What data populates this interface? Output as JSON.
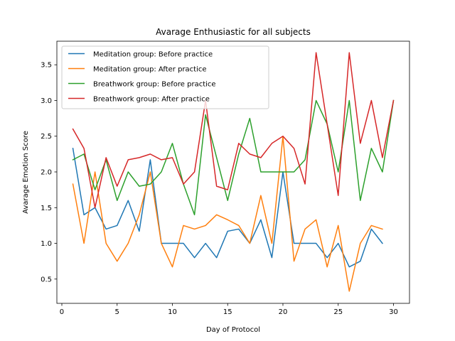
{
  "chart_data": {
    "type": "line",
    "title": "Avarage Enthusiastic for all subjects",
    "xlabel": "Day of Protocol",
    "ylabel": "Avarage Emotion Score",
    "xlim": [
      -0.45,
      31.45
    ],
    "ylim": [
      0.16,
      3.83
    ],
    "xticks": [
      0,
      5,
      10,
      15,
      20,
      25,
      30
    ],
    "yticks": [
      0.5,
      1.0,
      1.5,
      2.0,
      2.5,
      3.0,
      3.5
    ],
    "ytick_labels": [
      "0.5",
      "1.0",
      "1.5",
      "2.0",
      "2.5",
      "3.0",
      "3.5"
    ],
    "grid": false,
    "legend_position": "top-left",
    "series": [
      {
        "name": "Meditation group: Before practice",
        "color": "#1f77b4",
        "x": [
          1,
          2,
          3,
          4,
          5,
          6,
          7,
          8,
          9,
          10,
          11,
          12,
          13,
          14,
          15,
          16,
          17,
          18,
          19,
          20,
          21,
          22,
          23,
          24,
          25,
          26,
          27,
          28,
          29
        ],
        "y": [
          2.33,
          1.4,
          1.5,
          1.2,
          1.25,
          1.6,
          1.17,
          2.17,
          1.0,
          1.0,
          1.0,
          0.8,
          1.0,
          0.8,
          1.17,
          1.2,
          1.0,
          1.33,
          0.8,
          2.0,
          1.0,
          1.0,
          1.0,
          0.8,
          1.0,
          0.67,
          0.75,
          1.2,
          1.0
        ]
      },
      {
        "name": "Meditation group: After practice",
        "color": "#ff7f0e",
        "x": [
          1,
          2,
          3,
          4,
          5,
          6,
          7,
          8,
          9,
          10,
          11,
          12,
          13,
          14,
          15,
          16,
          17,
          18,
          19,
          20,
          21,
          22,
          23,
          24,
          25,
          26,
          27,
          28,
          29
        ],
        "y": [
          1.83,
          1.0,
          2.0,
          1.0,
          0.75,
          1.0,
          1.4,
          2.0,
          1.0,
          0.67,
          1.25,
          1.2,
          1.25,
          1.4,
          1.33,
          1.25,
          1.0,
          1.67,
          1.0,
          2.5,
          0.75,
          1.2,
          1.33,
          0.67,
          1.25,
          0.33,
          1.0,
          1.25,
          1.2
        ]
      },
      {
        "name": "Breathwork group: Before practice",
        "color": "#2ca02c",
        "x": [
          1,
          2,
          3,
          4,
          5,
          6,
          7,
          8,
          9,
          10,
          11,
          12,
          13,
          14,
          15,
          16,
          17,
          18,
          19,
          20,
          21,
          22,
          23,
          24,
          25,
          26,
          27,
          28,
          29,
          30
        ],
        "y": [
          2.17,
          2.25,
          1.75,
          2.17,
          1.6,
          2.0,
          1.8,
          1.83,
          2.0,
          2.4,
          1.83,
          1.4,
          2.8,
          2.2,
          1.6,
          2.25,
          2.75,
          2.0,
          2.0,
          2.0,
          2.0,
          2.17,
          3.0,
          2.67,
          2.0,
          3.0,
          1.6,
          2.33,
          2.0,
          3.0
        ]
      },
      {
        "name": "Breathwork group: After practice",
        "color": "#d62728",
        "x": [
          1,
          2,
          3,
          4,
          5,
          6,
          7,
          8,
          9,
          10,
          11,
          12,
          13,
          14,
          15,
          16,
          17,
          18,
          19,
          20,
          21,
          22,
          23,
          24,
          25,
          26,
          27,
          28,
          29,
          30
        ],
        "y": [
          2.6,
          2.33,
          1.5,
          2.2,
          1.8,
          2.17,
          2.2,
          2.25,
          2.17,
          2.2,
          1.83,
          2.0,
          3.0,
          1.8,
          1.75,
          2.4,
          2.25,
          2.2,
          2.4,
          2.5,
          2.33,
          1.83,
          3.67,
          2.67,
          1.67,
          3.67,
          2.4,
          3.0,
          2.2,
          3.0
        ]
      }
    ]
  }
}
